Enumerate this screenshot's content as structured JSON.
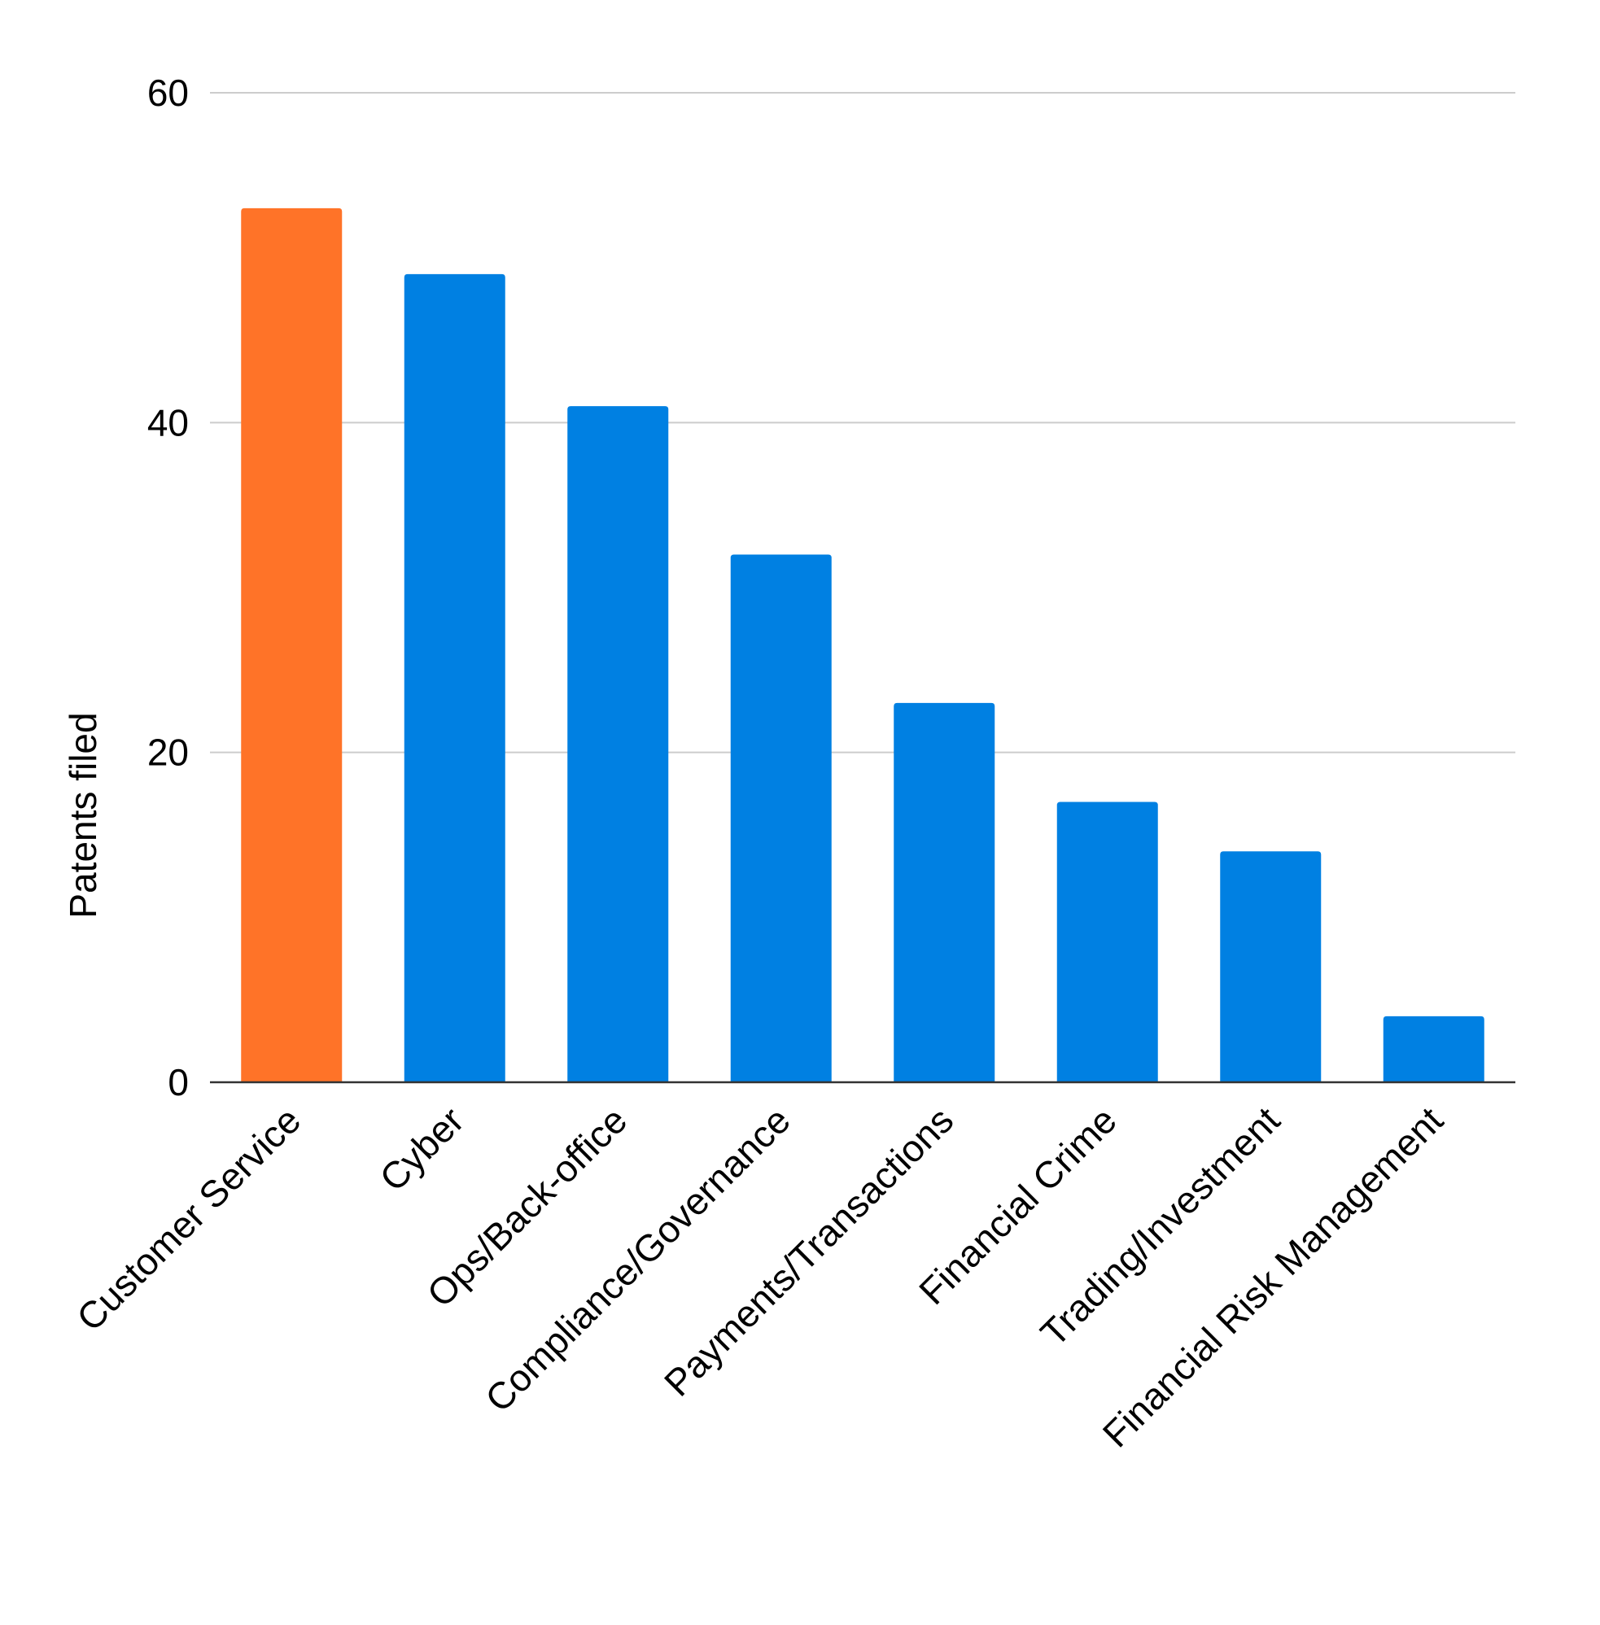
{
  "chart_data": {
    "type": "bar",
    "title": "",
    "xlabel": "",
    "ylabel": "Patents filed",
    "ylim": [
      0,
      60
    ],
    "yticks": [
      0,
      20,
      40,
      60
    ],
    "grid": true,
    "legend": "none",
    "categories": [
      "Customer Service",
      "Cyber",
      "Ops/Back-office",
      "Compliance/Governance",
      "Payments/Transactions",
      "Financial Crime",
      "Trading/Investment",
      "Financial Risk Management"
    ],
    "values": [
      53,
      49,
      41,
      32,
      23,
      17,
      14,
      4
    ],
    "bar_colors": [
      "#ff7328",
      "#0080e2",
      "#0080e2",
      "#0080e2",
      "#0080e2",
      "#0080e2",
      "#0080e2",
      "#0080e2"
    ]
  }
}
